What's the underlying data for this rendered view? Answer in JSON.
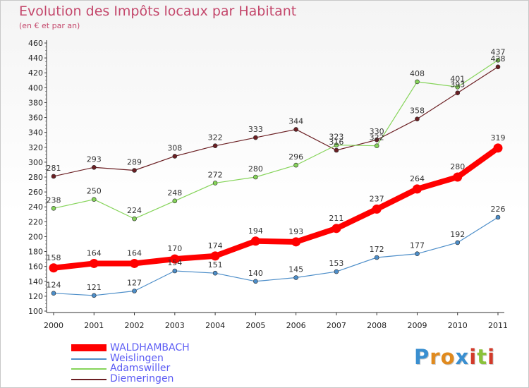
{
  "header": {
    "title": "Evolution des Impôts locaux par Habitant",
    "subtitle": "(en € et par an)"
  },
  "logo": {
    "letters": [
      "P",
      "r",
      "o",
      "x",
      "i",
      "t",
      "i"
    ],
    "colors": [
      "#3a8fd0",
      "#e08a1e",
      "#e08a1e",
      "#3a8fd0",
      "#d23a2a",
      "#8ac23a",
      "#d23a2a"
    ]
  },
  "chart_data": {
    "type": "line",
    "x": [
      "2000",
      "2001",
      "2002",
      "2003",
      "2004",
      "2005",
      "2006",
      "2007",
      "2008",
      "2009",
      "2010",
      "2011"
    ],
    "ylim": [
      100,
      460
    ],
    "yticks": [
      100,
      120,
      140,
      160,
      180,
      200,
      220,
      240,
      260,
      280,
      300,
      320,
      340,
      360,
      380,
      400,
      420,
      440,
      460
    ],
    "grid": false,
    "legend_position": "bottom-left",
    "series": [
      {
        "name": "WALDHAMBACH",
        "color": "#ff0000",
        "values": [
          158,
          164,
          164,
          170,
          174,
          194,
          193,
          211,
          237,
          264,
          280,
          319
        ]
      },
      {
        "name": "Weislingen",
        "color": "#4d8ec9",
        "values": [
          124,
          121,
          127,
          154,
          151,
          140,
          145,
          153,
          172,
          177,
          192,
          226
        ]
      },
      {
        "name": "Adamswiller",
        "color": "#86d45a",
        "values": [
          238,
          250,
          224,
          248,
          272,
          280,
          296,
          323,
          322,
          408,
          401,
          437
        ]
      },
      {
        "name": "Diemeringen",
        "color": "#6b1f23",
        "values": [
          281,
          293,
          289,
          308,
          322,
          333,
          344,
          316,
          330,
          358,
          393,
          428
        ]
      }
    ]
  }
}
